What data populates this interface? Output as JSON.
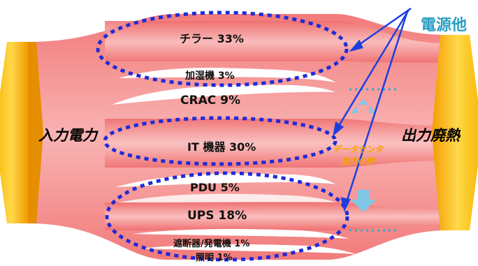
{
  "input_label": "入力電力",
  "output_label": "出力廃熱",
  "corner_label": "電源他",
  "heat_note": [
    "データセンタ",
    "室内の熱"
  ],
  "flows": [
    {
      "label": "チラー 33%"
    },
    {
      "label": "加湿機 3%"
    },
    {
      "label": "CRAC 9%"
    },
    {
      "label": "IT 機器 30%"
    },
    {
      "label": "PDU 5%"
    },
    {
      "label": "UPS 18%"
    },
    {
      "label": "遮断器/発電機 1%"
    },
    {
      "label": "照明 1%"
    }
  ],
  "colors": {
    "flow": "#f07373",
    "flow_light": "#fde2e2",
    "gold": "#f5a800",
    "dotted": "#1f2bd8",
    "arrow": "#1c3fe0",
    "corner_text": "#2a9ec2",
    "up_down_arrow": "#7fc7e6"
  }
}
